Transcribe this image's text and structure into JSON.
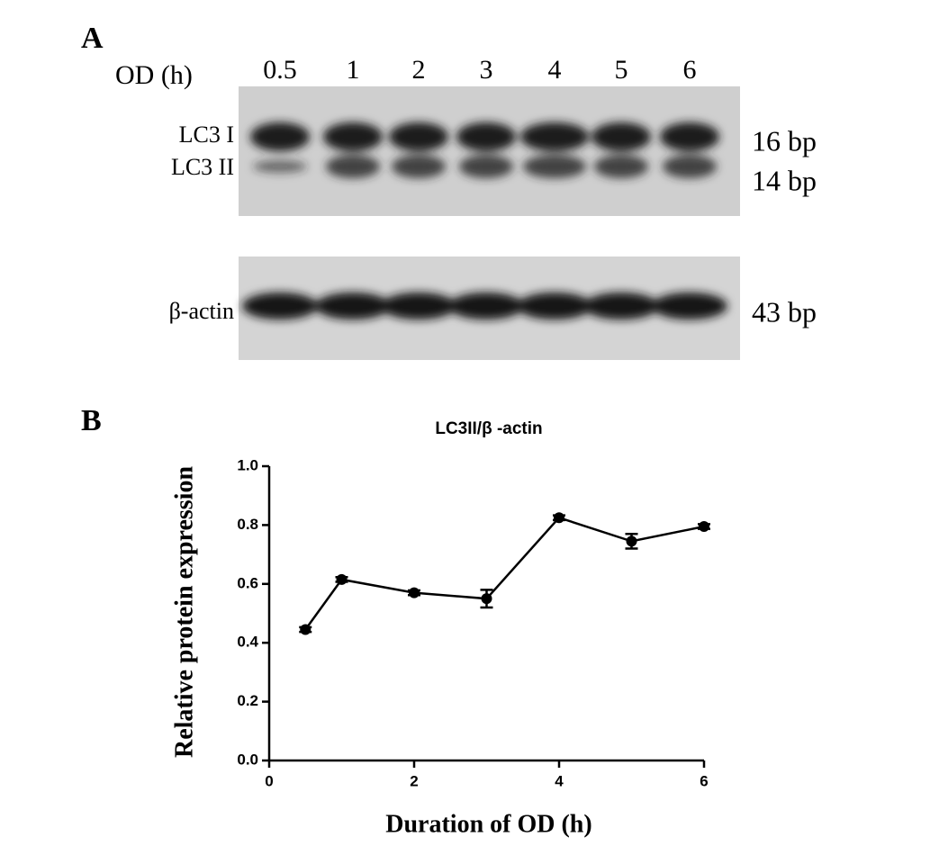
{
  "panel_a": {
    "label": "A",
    "lane_axis_label": "OD (h)",
    "lanes": [
      "0.5",
      "1",
      "2",
      "3",
      "4",
      "5",
      "6"
    ],
    "band_labels": [
      "LC3 I",
      "LC3 II",
      "β-actin"
    ],
    "band_sizes": [
      "16 bp",
      "14 bp",
      "43 bp"
    ]
  },
  "panel_b_label": "B",
  "chart_data": {
    "type": "line",
    "title": "LC3II/β -actin",
    "x_label": "Duration of OD (h)",
    "y_label": "Relative protein expression",
    "x": [
      0.5,
      1,
      2,
      3,
      4,
      5,
      6
    ],
    "values": [
      0.445,
      0.615,
      0.57,
      0.55,
      0.825,
      0.745,
      0.795
    ],
    "errors": [
      0.008,
      0.008,
      0.008,
      0.03,
      0.008,
      0.025,
      0.008
    ],
    "color": "#000000",
    "xlim": [
      0,
      6
    ],
    "xticks": [
      0,
      2,
      4,
      6
    ],
    "ylim": [
      0,
      1.0
    ],
    "yticks": [
      {
        "value": 0,
        "label": "0.0"
      },
      {
        "value": 0.2,
        "label": "0.2"
      },
      {
        "value": 0.4,
        "label": "0.4"
      },
      {
        "value": 0.6,
        "label": "0.6"
      },
      {
        "value": 0.8,
        "label": "0.8"
      },
      {
        "value": 1.0,
        "label": "1.0"
      }
    ]
  }
}
